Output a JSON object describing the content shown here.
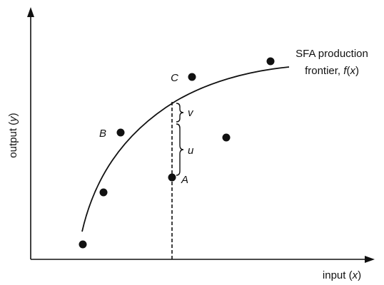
{
  "axes": {
    "x_label_text": "input (",
    "x_label_var": "x",
    "x_label_close": ")",
    "y_label_text": "output (",
    "y_label_var": "y",
    "y_label_close": ")"
  },
  "frontier": {
    "label_line1": "SFA production",
    "label_line2_text": "frontier, ",
    "label_line2_func": "f",
    "label_line2_open": "(",
    "label_line2_var": "x",
    "label_line2_close": ")"
  },
  "points": [
    {
      "label": ""
    },
    {
      "label": ""
    },
    {
      "label": "B"
    },
    {
      "label": "A"
    },
    {
      "label": "C"
    },
    {
      "label": ""
    },
    {
      "label": ""
    }
  ],
  "components": {
    "v_label": "v",
    "u_label": "u"
  },
  "colors": {
    "ink": "#111111",
    "background": "#ffffff"
  }
}
